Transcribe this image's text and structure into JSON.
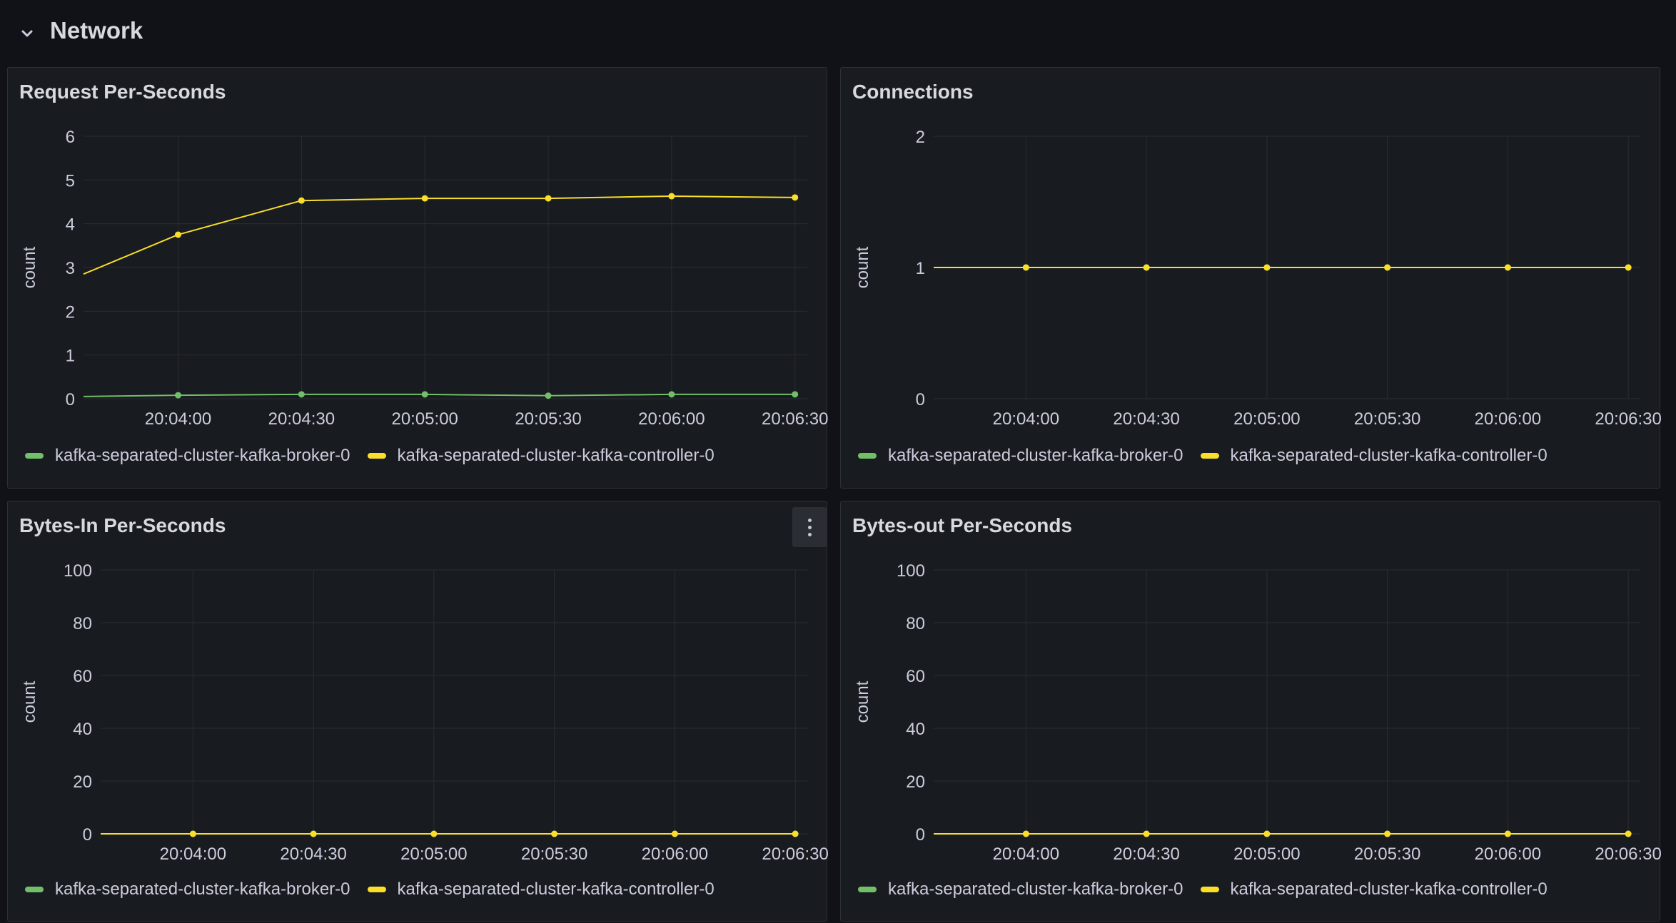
{
  "row": {
    "title": "Network",
    "icon": "chevron-down-icon"
  },
  "colors": {
    "broker": "#73bf69",
    "controller": "#fade2a",
    "grid": "#2a2d32"
  },
  "legend": {
    "broker": "kafka-separated-cluster-kafka-broker-0",
    "controller": "kafka-separated-cluster-kafka-controller-0"
  },
  "panels": [
    {
      "title": "Request Per-Seconds"
    },
    {
      "title": "Connections"
    },
    {
      "title": "Bytes-In Per-Seconds"
    },
    {
      "title": "Bytes-out Per-Seconds"
    }
  ],
  "chart_data": [
    {
      "type": "line",
      "title": "Request Per-Seconds",
      "ylabel": "count",
      "ylim": [
        0,
        6
      ],
      "yticks": [
        0,
        1,
        2,
        3,
        4,
        5,
        6
      ],
      "xticks": [
        "20:04:00",
        "20:04:30",
        "20:05:00",
        "20:05:30",
        "20:06:00",
        "20:06:30"
      ],
      "x": [
        "20:03:37",
        "20:04:00",
        "20:04:30",
        "20:05:00",
        "20:05:30",
        "20:06:00",
        "20:06:30"
      ],
      "legend": "bottom-left",
      "grid": true,
      "series": [
        {
          "name": "kafka-separated-cluster-kafka-broker-0",
          "color": "#73bf69",
          "values": [
            0.05,
            0.08,
            0.1,
            0.1,
            0.07,
            0.1,
            0.1
          ]
        },
        {
          "name": "kafka-separated-cluster-kafka-controller-0",
          "color": "#fade2a",
          "values": [
            2.85,
            3.75,
            4.53,
            4.58,
            4.58,
            4.63,
            4.6
          ]
        }
      ]
    },
    {
      "type": "line",
      "title": "Connections",
      "ylabel": "count",
      "ylim": [
        0,
        2
      ],
      "yticks": [
        0,
        1,
        2
      ],
      "xticks": [
        "20:04:00",
        "20:04:30",
        "20:05:00",
        "20:05:30",
        "20:06:00",
        "20:06:30"
      ],
      "x": [
        "20:03:37",
        "20:04:00",
        "20:04:30",
        "20:05:00",
        "20:05:30",
        "20:06:00",
        "20:06:30"
      ],
      "legend": "bottom-left",
      "grid": true,
      "series": [
        {
          "name": "kafka-separated-cluster-kafka-broker-0",
          "color": "#73bf69",
          "values": [
            1,
            1,
            1,
            1,
            1,
            1,
            1
          ]
        },
        {
          "name": "kafka-separated-cluster-kafka-controller-0",
          "color": "#fade2a",
          "values": [
            1,
            1,
            1,
            1,
            1,
            1,
            1
          ]
        }
      ]
    },
    {
      "type": "line",
      "title": "Bytes-In Per-Seconds",
      "ylabel": "count",
      "ylim": [
        0,
        100
      ],
      "yticks": [
        0,
        20,
        40,
        60,
        80,
        100
      ],
      "xticks": [
        "20:04:00",
        "20:04:30",
        "20:05:00",
        "20:05:30",
        "20:06:00",
        "20:06:30"
      ],
      "x": [
        "20:03:37",
        "20:04:00",
        "20:04:30",
        "20:05:00",
        "20:05:30",
        "20:06:00",
        "20:06:30"
      ],
      "legend": "bottom-left",
      "grid": true,
      "series": [
        {
          "name": "kafka-separated-cluster-kafka-broker-0",
          "color": "#73bf69",
          "values": [
            0,
            0,
            0,
            0,
            0,
            0,
            0
          ]
        },
        {
          "name": "kafka-separated-cluster-kafka-controller-0",
          "color": "#fade2a",
          "values": [
            0,
            0,
            0,
            0,
            0,
            0,
            0
          ]
        }
      ]
    },
    {
      "type": "line",
      "title": "Bytes-out Per-Seconds",
      "ylabel": "count",
      "ylim": [
        0,
        100
      ],
      "yticks": [
        0,
        20,
        40,
        60,
        80,
        100
      ],
      "xticks": [
        "20:04:00",
        "20:04:30",
        "20:05:00",
        "20:05:30",
        "20:06:00",
        "20:06:30"
      ],
      "x": [
        "20:03:37",
        "20:04:00",
        "20:04:30",
        "20:05:00",
        "20:05:30",
        "20:06:00",
        "20:06:30"
      ],
      "legend": "bottom-left",
      "grid": true,
      "series": [
        {
          "name": "kafka-separated-cluster-kafka-broker-0",
          "color": "#73bf69",
          "values": [
            0,
            0,
            0,
            0,
            0,
            0,
            0
          ]
        },
        {
          "name": "kafka-separated-cluster-kafka-controller-0",
          "color": "#fade2a",
          "values": [
            0,
            0,
            0,
            0,
            0,
            0,
            0
          ]
        }
      ]
    }
  ]
}
